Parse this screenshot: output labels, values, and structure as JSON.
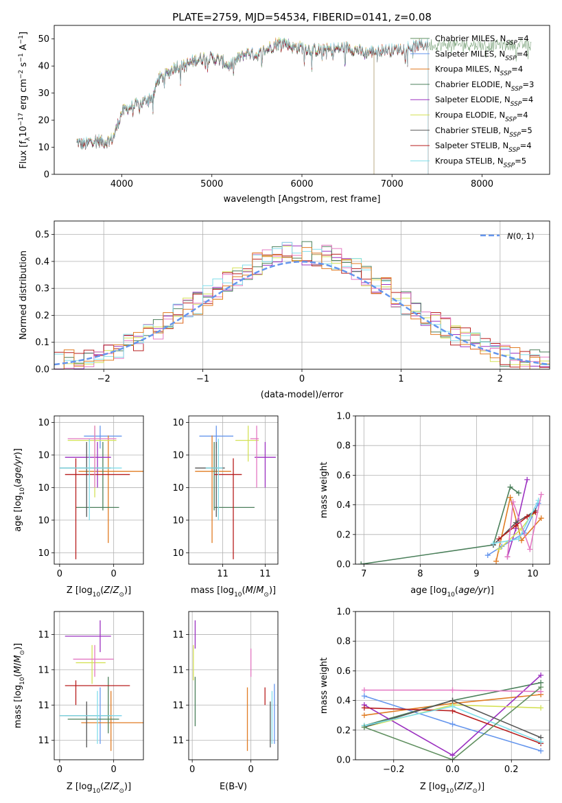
{
  "figure": {
    "title": "PLATE=2759, MJD=54534, FIBERID=0141, z=0.08"
  },
  "colors": {
    "Chabrier MILES": "#5f8f5f",
    "Salpeter MILES": "#6495ed",
    "Kroupa MILES": "#e07b22",
    "Chabrier ELODIE": "#4a7f5a",
    "Salpeter ELODIE": "#9b30c0",
    "Kroupa ELODIE": "#d4e157",
    "Chabrier STELIB": "#555555",
    "Salpeter STELIB": "#b71c1c",
    "Kroupa STELIB": "#80deea",
    "normal_curve": "#6495ed",
    "pink_series": "#e377c2"
  },
  "chart_data": [
    {
      "id": "spectrum",
      "type": "line",
      "xlabel": "wavelength [Angstrom, rest frame]",
      "ylabel": "Flux [f_λ10^-17 erg cm^-2 s^-1 A^-1]",
      "xlim": [
        3250,
        8750
      ],
      "ylim": [
        0,
        55
      ],
      "xticks": [
        4000,
        5000,
        6000,
        7000,
        8000
      ],
      "yticks": [
        0,
        10,
        20,
        30,
        40,
        50
      ],
      "grid": false,
      "legend_position": "top-right",
      "anchors": [
        [
          3500,
          12
        ],
        [
          3600,
          11
        ],
        [
          3700,
          13
        ],
        [
          3800,
          12
        ],
        [
          3900,
          13
        ],
        [
          3950,
          18
        ],
        [
          4000,
          23
        ],
        [
          4100,
          25
        ],
        [
          4200,
          26
        ],
        [
          4300,
          28
        ],
        [
          4350,
          29
        ],
        [
          4400,
          35
        ],
        [
          4500,
          37
        ],
        [
          4600,
          40
        ],
        [
          4700,
          40
        ],
        [
          4800,
          42
        ],
        [
          4900,
          43
        ],
        [
          5000,
          43
        ],
        [
          5100,
          42
        ],
        [
          5200,
          40
        ],
        [
          5300,
          43
        ],
        [
          5400,
          45
        ],
        [
          5500,
          44
        ],
        [
          5600,
          46
        ],
        [
          5700,
          48
        ],
        [
          5800,
          49
        ],
        [
          5900,
          47
        ],
        [
          6000,
          47
        ],
        [
          6100,
          46
        ],
        [
          6300,
          46
        ],
        [
          6500,
          47
        ],
        [
          6700,
          45
        ],
        [
          6900,
          46
        ],
        [
          7000,
          46
        ],
        [
          7200,
          47
        ],
        [
          7400,
          48
        ]
      ],
      "series": [
        {
          "name": "Chabrier MILES",
          "nssp": "4",
          "xmax": 8550
        },
        {
          "name": "Salpeter MILES",
          "nssp": "4",
          "xmax": 7400
        },
        {
          "name": "Kroupa MILES",
          "nssp": "4",
          "xmax": 7400
        },
        {
          "name": "Chabrier ELODIE",
          "nssp": "3",
          "xmax": 6800
        },
        {
          "name": "Salpeter ELODIE",
          "nssp": "4",
          "xmax": 6800
        },
        {
          "name": "Kroupa ELODIE",
          "nssp": "4",
          "xmax": 6800
        },
        {
          "name": "Chabrier STELIB",
          "nssp": "5",
          "xmax": 7400
        },
        {
          "name": "Salpeter STELIB",
          "nssp": "4",
          "xmax": 7400
        },
        {
          "name": "Kroupa STELIB",
          "nssp": "5",
          "xmax": 7400
        }
      ]
    },
    {
      "id": "residuals",
      "type": "area",
      "xlabel": "(data-model)/error",
      "ylabel": "Normed distribution",
      "xlim": [
        -2.5,
        2.5
      ],
      "ylim": [
        0,
        0.55
      ],
      "xticks": [
        -2,
        -1,
        0,
        1,
        2
      ],
      "yticks": [
        0.0,
        0.1,
        0.2,
        0.3,
        0.4,
        0.5
      ],
      "grid": true,
      "legend_position": "top-right",
      "normal_label": "N(0,1)",
      "bin_width": 0.1,
      "bin_start": -2.5
    },
    {
      "id": "age_vs_Z",
      "type": "scatter",
      "xlabel": "Z [log10(Z/Z☉)]",
      "ylabel": "age [log10(age/yr)]",
      "xlim": [
        -0.02,
        0.31
      ],
      "ylim": [
        9.565,
        10.02
      ],
      "xticks": [
        0.0,
        0.2
      ],
      "yticks": [
        9.6,
        9.7,
        9.8,
        9.9,
        10.0
      ],
      "grid": true,
      "points": [
        {
          "series": "Salpeter MILES",
          "x": 0.15,
          "y": 9.958,
          "xerr": [
            0.09,
            0.23
          ],
          "yerr": [
            9.92,
            9.99
          ]
        },
        {
          "series": "Kroupa MILES",
          "x": 0.18,
          "y": 9.85,
          "xerr": [
            0.07,
            0.31
          ],
          "yerr": [
            9.63,
            9.96
          ]
        },
        {
          "series": "Chabrier ELODIE",
          "x": 0.16,
          "y": 9.739,
          "xerr": [
            0.06,
            0.22
          ],
          "yerr": [
            9.73,
            9.94
          ]
        },
        {
          "series": "Salpeter ELODIE",
          "x": 0.14,
          "y": 9.893,
          "xerr": [
            0.02,
            0.19
          ],
          "yerr": [
            9.8,
            9.94
          ]
        },
        {
          "series": "Kroupa ELODIE",
          "x": 0.13,
          "y": 9.945,
          "xerr": [
            0.03,
            0.21
          ],
          "yerr": [
            9.77,
            9.99
          ]
        },
        {
          "series": "Chabrier STELIB",
          "x": 0.1,
          "y": 9.86,
          "xerr": [
            0.0,
            0.19
          ],
          "yerr": [
            9.71,
            9.94
          ]
        },
        {
          "series": "Salpeter STELIB",
          "x": 0.06,
          "y": 9.84,
          "xerr": [
            0.02,
            0.26
          ],
          "yerr": [
            9.58,
            9.89
          ]
        },
        {
          "series": "Kroupa STELIB",
          "x": 0.11,
          "y": 9.86,
          "xerr": [
            0.0,
            0.23
          ],
          "yerr": [
            9.7,
            9.95
          ]
        },
        {
          "series": "pink_series",
          "x": 0.13,
          "y": 9.95,
          "xerr": [
            0.03,
            0.21
          ],
          "yerr": [
            9.8,
            9.99
          ]
        }
      ]
    },
    {
      "id": "age_vs_mass",
      "type": "scatter",
      "xlabel": "mass [log10(M/M☉)]",
      "ylabel": "",
      "xlim": [
        10.64,
        11.06
      ],
      "ylim": [
        9.565,
        10.02
      ],
      "xticks": [
        10.8,
        11.0
      ],
      "yticks": [
        9.6,
        9.7,
        9.8,
        9.9,
        10.0
      ],
      "grid": true,
      "points": [
        {
          "series": "Salpeter MILES",
          "x": 10.77,
          "y": 9.958,
          "xerr": [
            10.69,
            10.85
          ],
          "yerr": [
            9.92,
            9.99
          ]
        },
        {
          "series": "Kroupa MILES",
          "x": 10.75,
          "y": 9.85,
          "xerr": [
            10.67,
            10.84
          ],
          "yerr": [
            9.63,
            9.96
          ]
        },
        {
          "series": "Chabrier ELODIE",
          "x": 10.76,
          "y": 9.739,
          "xerr": [
            10.76,
            10.95
          ],
          "yerr": [
            9.73,
            9.94
          ]
        },
        {
          "series": "Salpeter ELODIE",
          "x": 11.0,
          "y": 9.893,
          "xerr": [
            10.95,
            11.05
          ],
          "yerr": [
            9.8,
            9.94
          ]
        },
        {
          "series": "Kroupa ELODIE",
          "x": 10.92,
          "y": 9.945,
          "xerr": [
            10.86,
            10.97
          ],
          "yerr": [
            9.88,
            9.99
          ]
        },
        {
          "series": "Chabrier STELIB",
          "x": 10.77,
          "y": 9.86,
          "xerr": [
            10.67,
            10.81
          ],
          "yerr": [
            9.71,
            9.94
          ]
        },
        {
          "series": "Salpeter STELIB",
          "x": 10.85,
          "y": 9.84,
          "xerr": [
            10.76,
            10.89
          ],
          "yerr": [
            9.58,
            9.89
          ]
        },
        {
          "series": "Kroupa STELIB",
          "x": 10.78,
          "y": 9.86,
          "xerr": [
            10.72,
            10.8
          ],
          "yerr": [
            9.7,
            9.95
          ]
        },
        {
          "series": "pink_series",
          "x": 10.96,
          "y": 9.95,
          "xerr": [
            10.93,
            10.97
          ],
          "yerr": [
            9.8,
            9.99
          ]
        }
      ]
    },
    {
      "id": "mass_weight_vs_age",
      "type": "line",
      "xlabel": "age [log10(age/yr)]",
      "ylabel": "mass weight",
      "xlim": [
        6.85,
        10.3
      ],
      "ylim": [
        0,
        1.0
      ],
      "xticks": [
        7,
        8,
        9,
        10
      ],
      "yticks": [
        0.0,
        0.2,
        0.4,
        0.6,
        0.8,
        1.0
      ],
      "grid": true,
      "series": [
        {
          "name": "Chabrier ELODIE",
          "x": [
            6.95,
            9.3,
            9.6,
            9.75
          ],
          "y": [
            0.0,
            0.13,
            0.52,
            0.48
          ]
        },
        {
          "name": "Kroupa MILES",
          "x": [
            9.35,
            9.6,
            9.8,
            10.15
          ],
          "y": [
            0.02,
            0.45,
            0.16,
            0.31
          ]
        },
        {
          "name": "Salpeter MILES",
          "x": [
            9.2,
            9.45,
            9.85,
            10.1
          ],
          "y": [
            0.06,
            0.12,
            0.21,
            0.41
          ]
        },
        {
          "name": "Salpeter ELODIE",
          "x": [
            9.55,
            9.7,
            9.9
          ],
          "y": [
            0.05,
            0.24,
            0.57
          ]
        },
        {
          "name": "Kroupa ELODIE",
          "x": [
            9.4,
            9.8,
            10.0
          ],
          "y": [
            0.1,
            0.24,
            0.34
          ]
        },
        {
          "name": "Chabrier STELIB",
          "x": [
            9.3,
            9.7,
            10.05
          ],
          "y": [
            0.13,
            0.28,
            0.36
          ]
        },
        {
          "name": "Salpeter STELIB",
          "x": [
            9.4,
            9.7,
            9.9,
            10.05
          ],
          "y": [
            0.17,
            0.26,
            0.32,
            0.35
          ]
        },
        {
          "name": "Kroupa STELIB",
          "x": [
            9.3,
            9.75,
            10.1
          ],
          "y": [
            0.14,
            0.17,
            0.43
          ]
        },
        {
          "name": "pink_series",
          "x": [
            9.55,
            9.65,
            9.95,
            10.15
          ],
          "y": [
            0.05,
            0.42,
            0.1,
            0.47
          ]
        }
      ]
    },
    {
      "id": "mass_vs_Z",
      "type": "scatter",
      "xlabel": "Z [log10(Z/Z☉)]",
      "ylabel": "mass [log10(M/M☉)]",
      "xlim": [
        -0.02,
        0.31
      ],
      "ylim": [
        10.645,
        11.065
      ],
      "xticks": [
        0.0,
        0.2
      ],
      "yticks": [
        10.7,
        10.8,
        10.9,
        11.0
      ],
      "grid": true,
      "points": [
        {
          "series": "Salpeter MILES",
          "x": 0.15,
          "y": 10.77,
          "xerr": [
            0.02,
            0.23
          ],
          "yerr": [
            10.69,
            10.85
          ]
        },
        {
          "series": "Kroupa MILES",
          "x": 0.19,
          "y": 10.75,
          "xerr": [
            0.08,
            0.31
          ],
          "yerr": [
            10.67,
            10.84
          ]
        },
        {
          "series": "Chabrier ELODIE",
          "x": 0.18,
          "y": 10.76,
          "xerr": [
            0.03,
            0.22
          ],
          "yerr": [
            10.72,
            10.88
          ]
        },
        {
          "series": "Salpeter ELODIE",
          "x": 0.15,
          "y": 10.995,
          "xerr": [
            0.02,
            0.19
          ],
          "yerr": [
            10.95,
            11.04
          ]
        },
        {
          "series": "Kroupa ELODIE",
          "x": 0.12,
          "y": 10.92,
          "xerr": [
            0.06,
            0.17
          ],
          "yerr": [
            10.86,
            10.97
          ]
        },
        {
          "series": "Chabrier STELIB",
          "x": 0.1,
          "y": 10.77,
          "xerr": [
            0.0,
            0.19
          ],
          "yerr": [
            10.68,
            10.81
          ]
        },
        {
          "series": "Salpeter STELIB",
          "x": 0.06,
          "y": 10.855,
          "xerr": [
            0.02,
            0.26
          ],
          "yerr": [
            10.8,
            10.87
          ]
        },
        {
          "series": "Kroupa STELIB",
          "x": 0.14,
          "y": 10.77,
          "xerr": [
            0.0,
            0.23
          ],
          "yerr": [
            10.69,
            10.84
          ]
        },
        {
          "series": "pink_series",
          "x": 0.13,
          "y": 10.93,
          "xerr": [
            0.05,
            0.2
          ],
          "yerr": [
            10.88,
            10.97
          ]
        }
      ]
    },
    {
      "id": "mass_vs_ebv",
      "type": "scatter",
      "xlabel": "E(B-V)",
      "ylabel": "",
      "xlim": [
        -0.003,
        0.073
      ],
      "ylim": [
        10.645,
        11.065
      ],
      "xticks": [
        0.0,
        0.05
      ],
      "yticks": [
        10.7,
        10.8,
        10.9,
        11.0
      ],
      "grid": true,
      "points": [
        {
          "series": "Salpeter MILES",
          "x": 0.07,
          "yerr": [
            10.69,
            10.86
          ]
        },
        {
          "series": "Kroupa MILES",
          "x": 0.047,
          "yerr": [
            10.67,
            10.85
          ]
        },
        {
          "series": "Chabrier ELODIE",
          "x": 0.0025,
          "yerr": [
            10.74,
            10.88
          ]
        },
        {
          "series": "Salpeter ELODIE",
          "x": 0.0025,
          "yerr": [
            10.96,
            11.04
          ]
        },
        {
          "series": "Kroupa ELODIE",
          "x": 0.001,
          "yerr": [
            10.87,
            10.97
          ]
        },
        {
          "series": "Chabrier STELIB",
          "x": 0.0665,
          "yerr": [
            10.68,
            10.81
          ]
        },
        {
          "series": "Salpeter STELIB",
          "x": 0.062,
          "yerr": [
            10.8,
            10.85
          ]
        },
        {
          "series": "Kroupa STELIB",
          "x": 0.068,
          "yerr": [
            10.69,
            10.84
          ]
        },
        {
          "series": "pink_series",
          "x": 0.05,
          "yerr": [
            10.88,
            10.96
          ]
        }
      ]
    },
    {
      "id": "mass_weight_vs_Z",
      "type": "line",
      "xlabel": "Z [log10(Z/Z☉)]",
      "ylabel": "mass weight",
      "xlim": [
        -0.33,
        0.33
      ],
      "ylim": [
        0,
        1.0
      ],
      "xticks": [
        -0.2,
        0.0,
        0.2
      ],
      "yticks": [
        0.0,
        0.2,
        0.4,
        0.6,
        0.8,
        1.0
      ],
      "grid": true,
      "series": [
        {
          "name": "Salpeter MILES",
          "x": [
            -0.3,
            0.0,
            0.3
          ],
          "y": [
            0.43,
            0.24,
            0.06
          ]
        },
        {
          "name": "Kroupa MILES",
          "x": [
            -0.3,
            0.0,
            0.3
          ],
          "y": [
            0.3,
            0.38,
            0.44
          ]
        },
        {
          "name": "Chabrier ELODIE",
          "x": [
            -0.3,
            0.0,
            0.3
          ],
          "y": [
            0.23,
            0.4,
            0.52
          ]
        },
        {
          "name": "Salpeter ELODIE",
          "x": [
            -0.3,
            0.0,
            0.3
          ],
          "y": [
            0.37,
            0.03,
            0.57
          ]
        },
        {
          "name": "Kroupa ELODIE",
          "x": [
            -0.3,
            0.0,
            0.3
          ],
          "y": [
            0.22,
            0.37,
            0.35
          ]
        },
        {
          "name": "Chabrier STELIB",
          "x": [
            -0.3,
            0.0,
            0.3
          ],
          "y": [
            0.22,
            0.4,
            0.15
          ]
        },
        {
          "name": "Salpeter STELIB",
          "x": [
            -0.3,
            0.0,
            0.3
          ],
          "y": [
            0.35,
            0.33,
            0.11
          ]
        },
        {
          "name": "Kroupa STELIB",
          "x": [
            -0.3,
            0.0,
            0.3
          ],
          "y": [
            0.23,
            0.36,
            0.12
          ]
        },
        {
          "name": "pink_series",
          "x": [
            -0.3,
            0.0,
            0.3
          ],
          "y": [
            0.47,
            0.47,
            0.46
          ]
        },
        {
          "name": "Chabrier MILES",
          "x": [
            -0.3,
            0.0,
            0.3
          ],
          "y": [
            0.22,
            0.0,
            0.49
          ]
        }
      ]
    }
  ]
}
